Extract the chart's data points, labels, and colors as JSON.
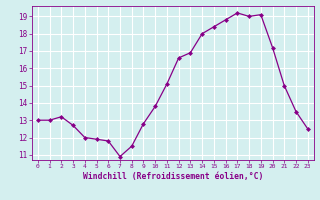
{
  "x": [
    0,
    1,
    2,
    3,
    4,
    5,
    6,
    7,
    8,
    9,
    10,
    11,
    12,
    13,
    14,
    15,
    16,
    17,
    18,
    19,
    20,
    21,
    22,
    23
  ],
  "y": [
    13.0,
    13.0,
    13.2,
    12.7,
    12.0,
    11.9,
    11.8,
    10.9,
    11.5,
    12.8,
    13.8,
    15.1,
    16.6,
    16.9,
    18.0,
    18.4,
    18.8,
    19.2,
    19.0,
    19.1,
    17.2,
    15.0,
    13.5,
    12.5
  ],
  "ylim": [
    10.7,
    19.6
  ],
  "yticks": [
    11,
    12,
    13,
    14,
    15,
    16,
    17,
    18,
    19
  ],
  "xticks": [
    0,
    1,
    2,
    3,
    4,
    5,
    6,
    7,
    8,
    9,
    10,
    11,
    12,
    13,
    14,
    15,
    16,
    17,
    18,
    19,
    20,
    21,
    22,
    23
  ],
  "xlabel": "Windchill (Refroidissement éolien,°C)",
  "line_color": "#880088",
  "marker_color": "#880088",
  "bg_color": "#d4efef",
  "grid_color": "#ffffff",
  "title": ""
}
